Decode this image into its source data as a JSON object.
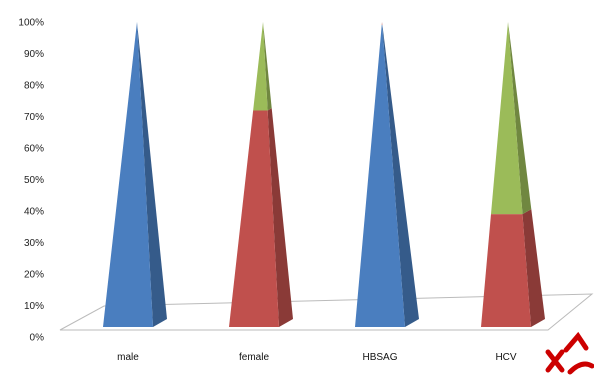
{
  "chart_data": {
    "type": "bar",
    "style": "3d-pyramid-stacked-100",
    "categories": [
      "male",
      "female",
      "HBSAG",
      "HCV"
    ],
    "series": [
      {
        "color": "#4a7ebf",
        "values": [
          100,
          0,
          99,
          0
        ]
      },
      {
        "color": "#c0504d",
        "values": [
          0,
          71,
          1,
          37
        ]
      },
      {
        "color": "#9bbb59",
        "values": [
          0,
          29,
          0,
          63
        ]
      }
    ],
    "ylim": [
      0,
      100
    ],
    "y_ticks": [
      "0%",
      "10%",
      "20%",
      "30%",
      "40%",
      "50%",
      "60%",
      "70%",
      "80%",
      "90%",
      "100%"
    ],
    "grid": false,
    "legend": "none",
    "xlabel": "",
    "ylabel": ""
  },
  "colors": {
    "floor_edge": "#bbbbbb",
    "decoration": "#cc0000"
  }
}
